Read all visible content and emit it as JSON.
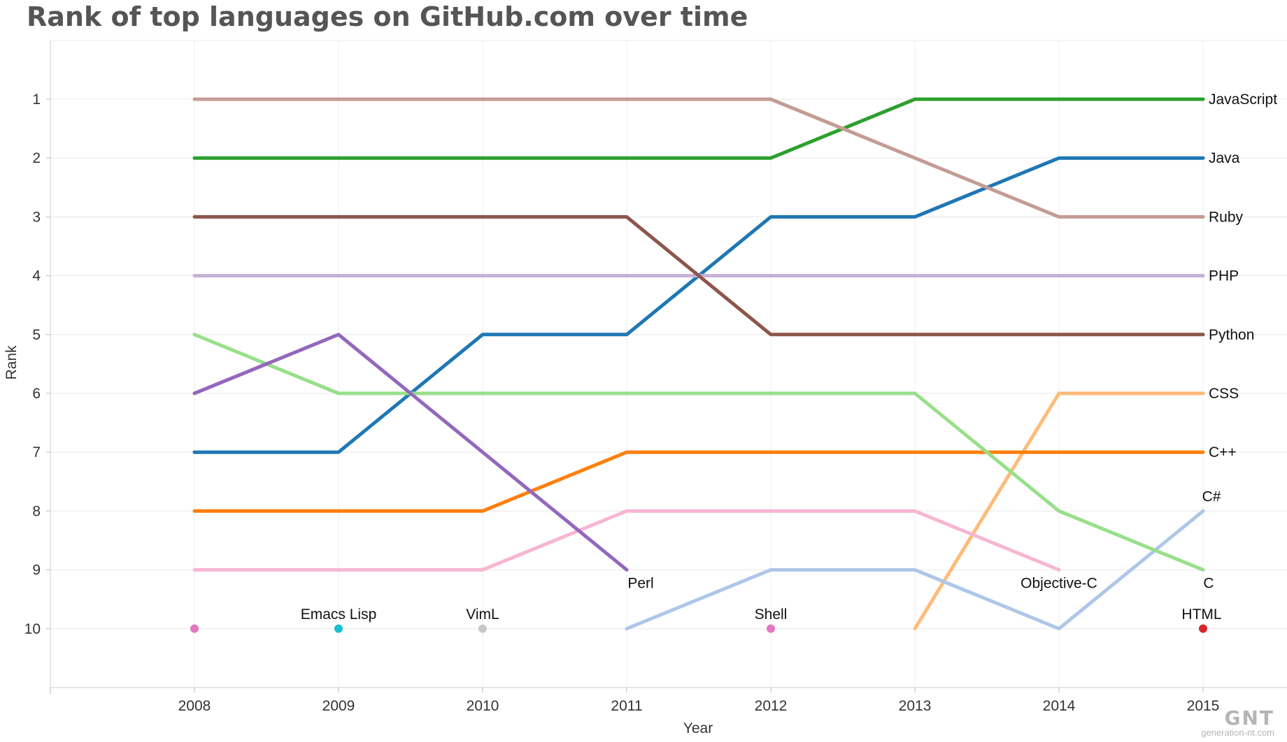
{
  "chart_data": {
    "type": "line",
    "title": "Rank of top languages on GitHub.com over time",
    "xlabel": "Year",
    "ylabel": "Rank",
    "x": [
      2008,
      2009,
      2010,
      2011,
      2012,
      2013,
      2014,
      2015
    ],
    "y_ticks": [
      1,
      2,
      3,
      4,
      5,
      6,
      7,
      8,
      9,
      10
    ],
    "ylim": [
      0,
      11
    ],
    "y_inverted": true,
    "grid": true,
    "series": [
      {
        "name": "JavaScript",
        "color": "#2ca02c",
        "values": [
          2,
          2,
          2,
          2,
          2,
          1,
          1,
          1
        ]
      },
      {
        "name": "Java",
        "color": "#1f77b4",
        "values": [
          7,
          7,
          5,
          5,
          3,
          3,
          2,
          2
        ]
      },
      {
        "name": "Ruby",
        "color": "#c49c94",
        "values": [
          1,
          1,
          1,
          1,
          1,
          2,
          3,
          3
        ]
      },
      {
        "name": "PHP",
        "color": "#c5b0d5",
        "values": [
          4,
          4,
          4,
          4,
          4,
          4,
          4,
          4
        ]
      },
      {
        "name": "Python",
        "color": "#8c564b",
        "values": [
          3,
          3,
          3,
          3,
          5,
          5,
          5,
          5
        ]
      },
      {
        "name": "CSS",
        "color": "#ffbb78",
        "values": [
          null,
          null,
          null,
          null,
          null,
          10,
          6,
          6
        ]
      },
      {
        "name": "C++",
        "color": "#ff7f0e",
        "values": [
          8,
          8,
          8,
          7,
          7,
          7,
          7,
          7
        ]
      },
      {
        "name": "C#",
        "color": "#aec7e8",
        "values": [
          null,
          null,
          null,
          10,
          9,
          9,
          10,
          8
        ]
      },
      {
        "name": "C",
        "color": "#98df8a",
        "values": [
          5,
          6,
          6,
          6,
          6,
          6,
          8,
          9
        ]
      },
      {
        "name": "Objective-C",
        "color": "#f7b6d2",
        "values": [
          9,
          9,
          9,
          8,
          8,
          8,
          9,
          null
        ]
      },
      {
        "name": "Perl",
        "color": "#9467bd",
        "values": [
          6,
          5,
          null,
          9,
          null,
          null,
          null,
          null
        ]
      },
      {
        "name": "Emacs Lisp",
        "color": "#17becf",
        "values": [
          null,
          10,
          null,
          null,
          null,
          null,
          null,
          null
        ]
      },
      {
        "name": "VimL",
        "color": "#c7c7c7",
        "values": [
          null,
          null,
          10,
          null,
          null,
          null,
          null,
          null
        ]
      },
      {
        "name": "Shell",
        "color": "#e377c2",
        "values": [
          10,
          null,
          null,
          null,
          10,
          null,
          null,
          null
        ]
      },
      {
        "name": "HTML",
        "color": "#d62728",
        "values": [
          null,
          null,
          null,
          null,
          null,
          null,
          null,
          10
        ]
      }
    ]
  },
  "watermark": {
    "logo": "GNT",
    "site": "generation-nt.com"
  }
}
